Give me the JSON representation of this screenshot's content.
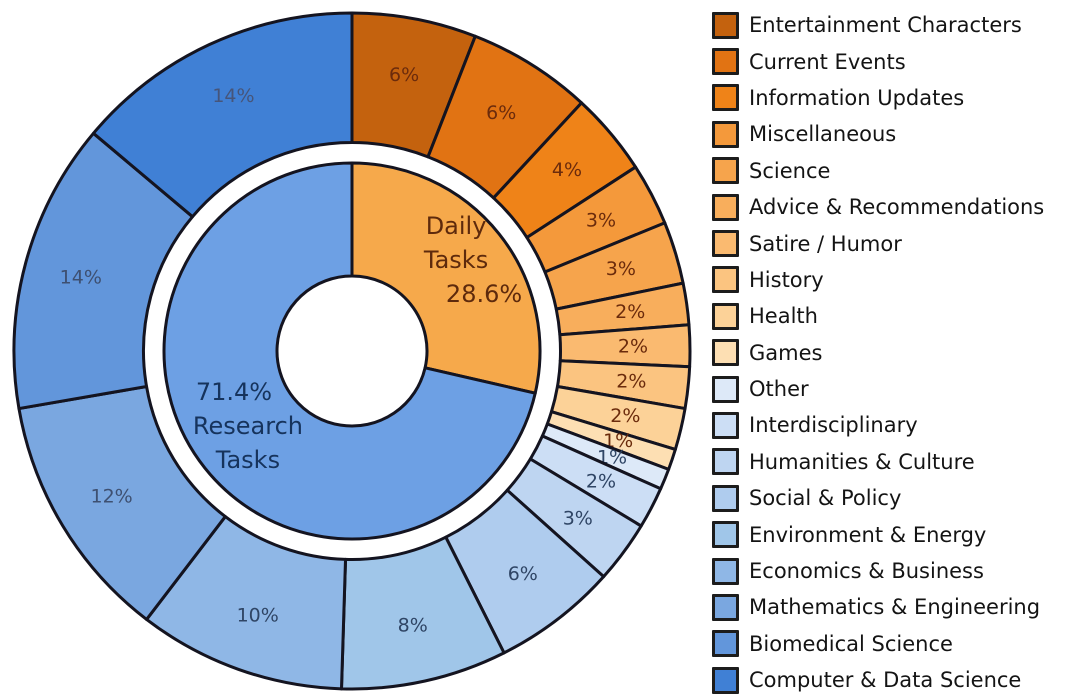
{
  "chart_data": {
    "type": "pie",
    "subtype": "two-ring sunburst donut",
    "title": "",
    "units": "percent",
    "legend_position": "right",
    "grid": false,
    "stroke_color": "#141420",
    "inner_ring": {
      "name": "task-type",
      "segments": [
        {
          "label": "Daily Tasks",
          "value": 28.6,
          "display": "28.6%",
          "color": "#F6A94B",
          "label_color": "#5E2A0C"
        },
        {
          "label": "Research Tasks",
          "value": 71.4,
          "display": "71.4%",
          "color": "#6DA0E4",
          "label_color": "#16335C"
        }
      ]
    },
    "outer_ring": {
      "name": "task-category",
      "segments": [
        {
          "label": "Entertainment Characters",
          "value": 6,
          "display": "6%",
          "color": "#C4620E",
          "group": "Daily Tasks",
          "label_color": "#6B2B0C"
        },
        {
          "label": "Current Events",
          "value": 6,
          "display": "6%",
          "color": "#E17313",
          "group": "Daily Tasks",
          "label_color": "#6B2B0C"
        },
        {
          "label": "Information Updates",
          "value": 4,
          "display": "4%",
          "color": "#EF8318",
          "group": "Daily Tasks",
          "label_color": "#6B2B0C"
        },
        {
          "label": "Miscellaneous",
          "value": 3,
          "display": "3%",
          "color": "#F4993B",
          "group": "Daily Tasks",
          "label_color": "#6B2B0C"
        },
        {
          "label": "Science",
          "value": 3,
          "display": "3%",
          "color": "#F6A44C",
          "group": "Daily Tasks",
          "label_color": "#6B2B0C"
        },
        {
          "label": "Advice & Recommendations",
          "value": 2,
          "display": "2%",
          "color": "#F8AE5C",
          "group": "Daily Tasks",
          "label_color": "#6B2B0C"
        },
        {
          "label": "Satire / Humor",
          "value": 2,
          "display": "2%",
          "color": "#FABA70",
          "group": "Daily Tasks",
          "label_color": "#6B2B0C"
        },
        {
          "label": "History",
          "value": 2,
          "display": "2%",
          "color": "#FBC480",
          "group": "Daily Tasks",
          "label_color": "#6B2B0C"
        },
        {
          "label": "Health",
          "value": 2,
          "display": "2%",
          "color": "#FCD298",
          "group": "Daily Tasks",
          "label_color": "#6B2B0C"
        },
        {
          "label": "Games",
          "value": 1,
          "display": "1%",
          "color": "#FDDFB3",
          "group": "Daily Tasks",
          "label_color": "#6B2B0C"
        },
        {
          "label": "Other",
          "value": 1,
          "display": "1%",
          "color": "#DDE9F8",
          "group": "Research Tasks",
          "label_color": "#2F4565"
        },
        {
          "label": "Interdisciplinary",
          "value": 2,
          "display": "2%",
          "color": "#CCDEF5",
          "group": "Research Tasks",
          "label_color": "#2F4565"
        },
        {
          "label": "Humanities & Culture",
          "value": 3,
          "display": "3%",
          "color": "#BED5F1",
          "group": "Research Tasks",
          "label_color": "#2F4565"
        },
        {
          "label": "Social & Policy",
          "value": 6,
          "display": "6%",
          "color": "#AFCCEE",
          "group": "Research Tasks",
          "label_color": "#2F4565"
        },
        {
          "label": "Environment & Energy",
          "value": 8,
          "display": "8%",
          "color": "#A0C6E9",
          "group": "Research Tasks",
          "label_color": "#2F4565"
        },
        {
          "label": "Economics & Business",
          "value": 10,
          "display": "10%",
          "color": "#8FB7E6",
          "group": "Research Tasks",
          "label_color": "#2F4565"
        },
        {
          "label": "Mathematics & Engineering",
          "value": 12,
          "display": "12%",
          "color": "#7AA7E0",
          "group": "Research Tasks",
          "label_color": "#3E5071"
        },
        {
          "label": "Biomedical Science",
          "value": 14,
          "display": "14%",
          "color": "#6296DB",
          "group": "Research Tasks",
          "label_color": "#3E5071"
        },
        {
          "label": "Computer & Data Science",
          "value": 14,
          "display": "14%",
          "color": "#4080D5",
          "group": "Research Tasks",
          "label_color": "#46557A"
        }
      ]
    }
  }
}
